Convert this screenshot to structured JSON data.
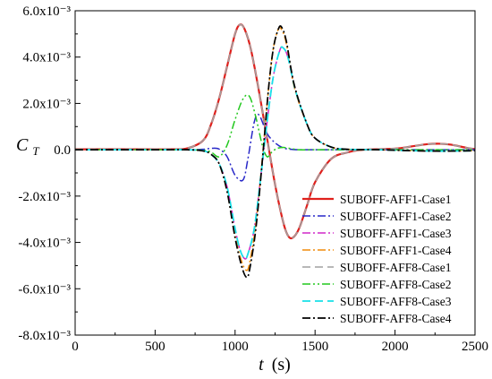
{
  "chart_data": {
    "type": "line",
    "xlabel_var": "t",
    "xlabel_unit": "(s)",
    "ylabel_var": "C",
    "ylabel_sub": "T",
    "xlim": [
      0,
      2500
    ],
    "ylim": [
      -0.008,
      0.006
    ],
    "x_ticks": [
      0,
      500,
      1000,
      1500,
      2000,
      2500
    ],
    "x_tick_labels": [
      "0",
      "500",
      "1000",
      "1500",
      "2000",
      "2500"
    ],
    "y_ticks": [
      0.006,
      0.004,
      0.002,
      0.0,
      -0.002,
      -0.004,
      -0.006,
      -0.008
    ],
    "y_tick_labels": [
      "6.0x10⁻³",
      "4.0x10⁻³",
      "2.0x10⁻³",
      "0.0",
      "-2.0x10⁻³",
      "-4.0x10⁻³",
      "-6.0x10⁻³",
      "-8.0x10⁻³"
    ],
    "grid": false,
    "legend_position": "bottom-right",
    "series": [
      {
        "name": "SUBOFF-AFF1-Case1",
        "color": "#e0201c",
        "dash": "solid",
        "width": 2.2,
        "x": [
          0,
          400,
          600,
          700,
          800,
          850,
          900,
          950,
          1000,
          1030,
          1060,
          1100,
          1150,
          1200,
          1250,
          1300,
          1330,
          1360,
          1400,
          1450,
          1500,
          1600,
          1700,
          1800,
          2000,
          2100,
          2200,
          2280,
          2350,
          2450,
          2500
        ],
        "y": [
          2e-05,
          2e-05,
          2e-05,
          6e-05,
          0.0004,
          0.0011,
          0.0022,
          0.0036,
          0.005,
          0.0054,
          0.0052,
          0.0043,
          0.0025,
          0.0005,
          -0.0015,
          -0.0031,
          -0.0037,
          -0.0038,
          -0.0034,
          -0.0024,
          -0.0014,
          -0.0004,
          -0.00012,
          0.0,
          5e-05,
          0.00014,
          0.00024,
          0.00026,
          0.00022,
          8e-05,
          3e-05
        ]
      },
      {
        "name": "SUBOFF-AFF1-Case2",
        "color": "#2828c8",
        "dash": "dashdot",
        "width": 1.5,
        "x": [
          0,
          500,
          700,
          800,
          850,
          900,
          950,
          1000,
          1050,
          1080,
          1120,
          1150,
          1200,
          1250,
          1300,
          1350,
          1400,
          1500,
          1600,
          1800,
          2000,
          2200,
          2300,
          2400,
          2500
        ],
        "y": [
          0.0,
          0.0,
          0.0,
          2e-05,
          6e-05,
          3e-05,
          -0.0003,
          -0.0011,
          -0.0013,
          -0.0004,
          0.0012,
          0.0015,
          0.0007,
          0.0003,
          8e-05,
          2e-05,
          0.0,
          0.0,
          0.0,
          0.0,
          0.0,
          0.0,
          0.0,
          0.0,
          0.0
        ]
      },
      {
        "name": "SUBOFF-AFF1-Case3",
        "color": "#d028c8",
        "dash": "dashdot",
        "width": 1.5,
        "x": [
          0,
          500,
          700,
          800,
          850,
          900,
          950,
          1000,
          1030,
          1060,
          1080,
          1120,
          1160,
          1200,
          1240,
          1280,
          1300,
          1330,
          1380,
          1450,
          1500,
          1600,
          1700,
          1900,
          2100,
          2300,
          2500
        ],
        "y": [
          0.0,
          0.0,
          0.0,
          -4e-05,
          -0.0002,
          -0.0006,
          -0.0016,
          -0.0034,
          -0.0043,
          -0.0047,
          -0.0045,
          -0.0034,
          -0.0012,
          0.0012,
          0.0032,
          0.0043,
          0.0044,
          0.004,
          0.0025,
          0.0011,
          0.0005,
          0.00012,
          2e-05,
          0.0,
          -4e-05,
          -6e-05,
          -4e-05
        ]
      },
      {
        "name": "SUBOFF-AFF1-Case4",
        "color": "#f08c0a",
        "dash": "dashdot",
        "width": 1.5,
        "x": [
          0,
          500,
          700,
          800,
          850,
          900,
          950,
          1000,
          1040,
          1070,
          1090,
          1130,
          1170,
          1210,
          1240,
          1270,
          1290,
          1320,
          1370,
          1450,
          1500,
          1600,
          1700,
          1900,
          2100,
          2300,
          2500
        ],
        "y": [
          0.0,
          0.0,
          0.0,
          -5e-05,
          -0.0002,
          -0.0006,
          -0.0018,
          -0.0037,
          -0.0048,
          -0.0052,
          -0.0049,
          -0.0032,
          -0.0004,
          0.0027,
          0.0044,
          0.0052,
          0.0052,
          0.0046,
          0.0027,
          0.0011,
          0.0005,
          0.00012,
          2e-05,
          0.0,
          -4e-05,
          -6e-05,
          -4e-05
        ]
      },
      {
        "name": "SUBOFF-AFF8-Case1",
        "color": "#a0a0a0",
        "dash": "dash",
        "width": 1.6,
        "x": [
          0,
          400,
          600,
          700,
          800,
          850,
          900,
          950,
          1000,
          1030,
          1060,
          1100,
          1150,
          1200,
          1250,
          1300,
          1330,
          1360,
          1400,
          1450,
          1500,
          1600,
          1700,
          1800,
          2000,
          2100,
          2200,
          2280,
          2350,
          2450,
          2500
        ],
        "y": [
          2e-05,
          2e-05,
          2e-05,
          6e-05,
          0.0004,
          0.0011,
          0.0022,
          0.0036,
          0.005,
          0.0054,
          0.0052,
          0.0043,
          0.0025,
          0.0005,
          -0.0015,
          -0.0031,
          -0.0037,
          -0.0038,
          -0.0034,
          -0.0024,
          -0.0014,
          -0.0004,
          -0.00012,
          0.0,
          5e-05,
          0.00014,
          0.00024,
          0.00026,
          0.00022,
          8e-05,
          3e-05
        ]
      },
      {
        "name": "SUBOFF-AFF8-Case2",
        "color": "#22c81e",
        "dash": "dashdotdot",
        "width": 1.5,
        "x": [
          0,
          500,
          700,
          800,
          850,
          900,
          950,
          1000,
          1050,
          1090,
          1130,
          1170,
          1200,
          1230,
          1260,
          1300,
          1350,
          1400,
          1500,
          1600,
          1800,
          2000,
          2200,
          2400,
          2500
        ],
        "y": [
          0.0,
          0.0,
          0.0,
          -2e-05,
          -0.0001,
          -0.0003,
          0.0002,
          0.0013,
          0.0022,
          0.0023,
          0.0014,
          0.0002,
          -0.0003,
          -0.0001,
          5e-05,
          0.0001,
          5e-05,
          0.0,
          0.0,
          0.0,
          0.0,
          0.0,
          0.0,
          0.0,
          0.0
        ]
      },
      {
        "name": "SUBOFF-AFF8-Case3",
        "color": "#18e0e8",
        "dash": "dash",
        "width": 1.8,
        "x": [
          0,
          500,
          700,
          800,
          850,
          900,
          950,
          1000,
          1030,
          1060,
          1080,
          1120,
          1160,
          1200,
          1240,
          1280,
          1300,
          1330,
          1380,
          1450,
          1500,
          1600,
          1700,
          1900,
          2100,
          2300,
          2500
        ],
        "y": [
          0.0,
          0.0,
          0.0,
          -4e-05,
          -0.0002,
          -0.0006,
          -0.0016,
          -0.0034,
          -0.0043,
          -0.0047,
          -0.0045,
          -0.0034,
          -0.0012,
          0.0012,
          0.0032,
          0.0043,
          0.0044,
          0.004,
          0.0025,
          0.0011,
          0.0005,
          0.00012,
          2e-05,
          0.0,
          -4e-05,
          -6e-05,
          -4e-05
        ]
      },
      {
        "name": "SUBOFF-AFF8-Case4",
        "color": "#000000",
        "dash": "dashdot",
        "width": 1.7,
        "x": [
          0,
          500,
          700,
          800,
          850,
          900,
          950,
          1000,
          1040,
          1070,
          1090,
          1130,
          1170,
          1210,
          1240,
          1270,
          1290,
          1320,
          1370,
          1450,
          1500,
          1600,
          1700,
          1900,
          2100,
          2300,
          2500
        ],
        "y": [
          0.0,
          0.0,
          0.0,
          -5e-05,
          -0.0002,
          -0.0006,
          -0.0018,
          -0.0038,
          -0.005,
          -0.0055,
          -0.0052,
          -0.0034,
          -0.0005,
          0.0027,
          0.0044,
          0.0052,
          0.0053,
          0.0047,
          0.0028,
          0.0011,
          0.0005,
          0.00012,
          2e-05,
          0.0,
          -4e-05,
          -6e-05,
          -4e-05
        ]
      }
    ]
  }
}
